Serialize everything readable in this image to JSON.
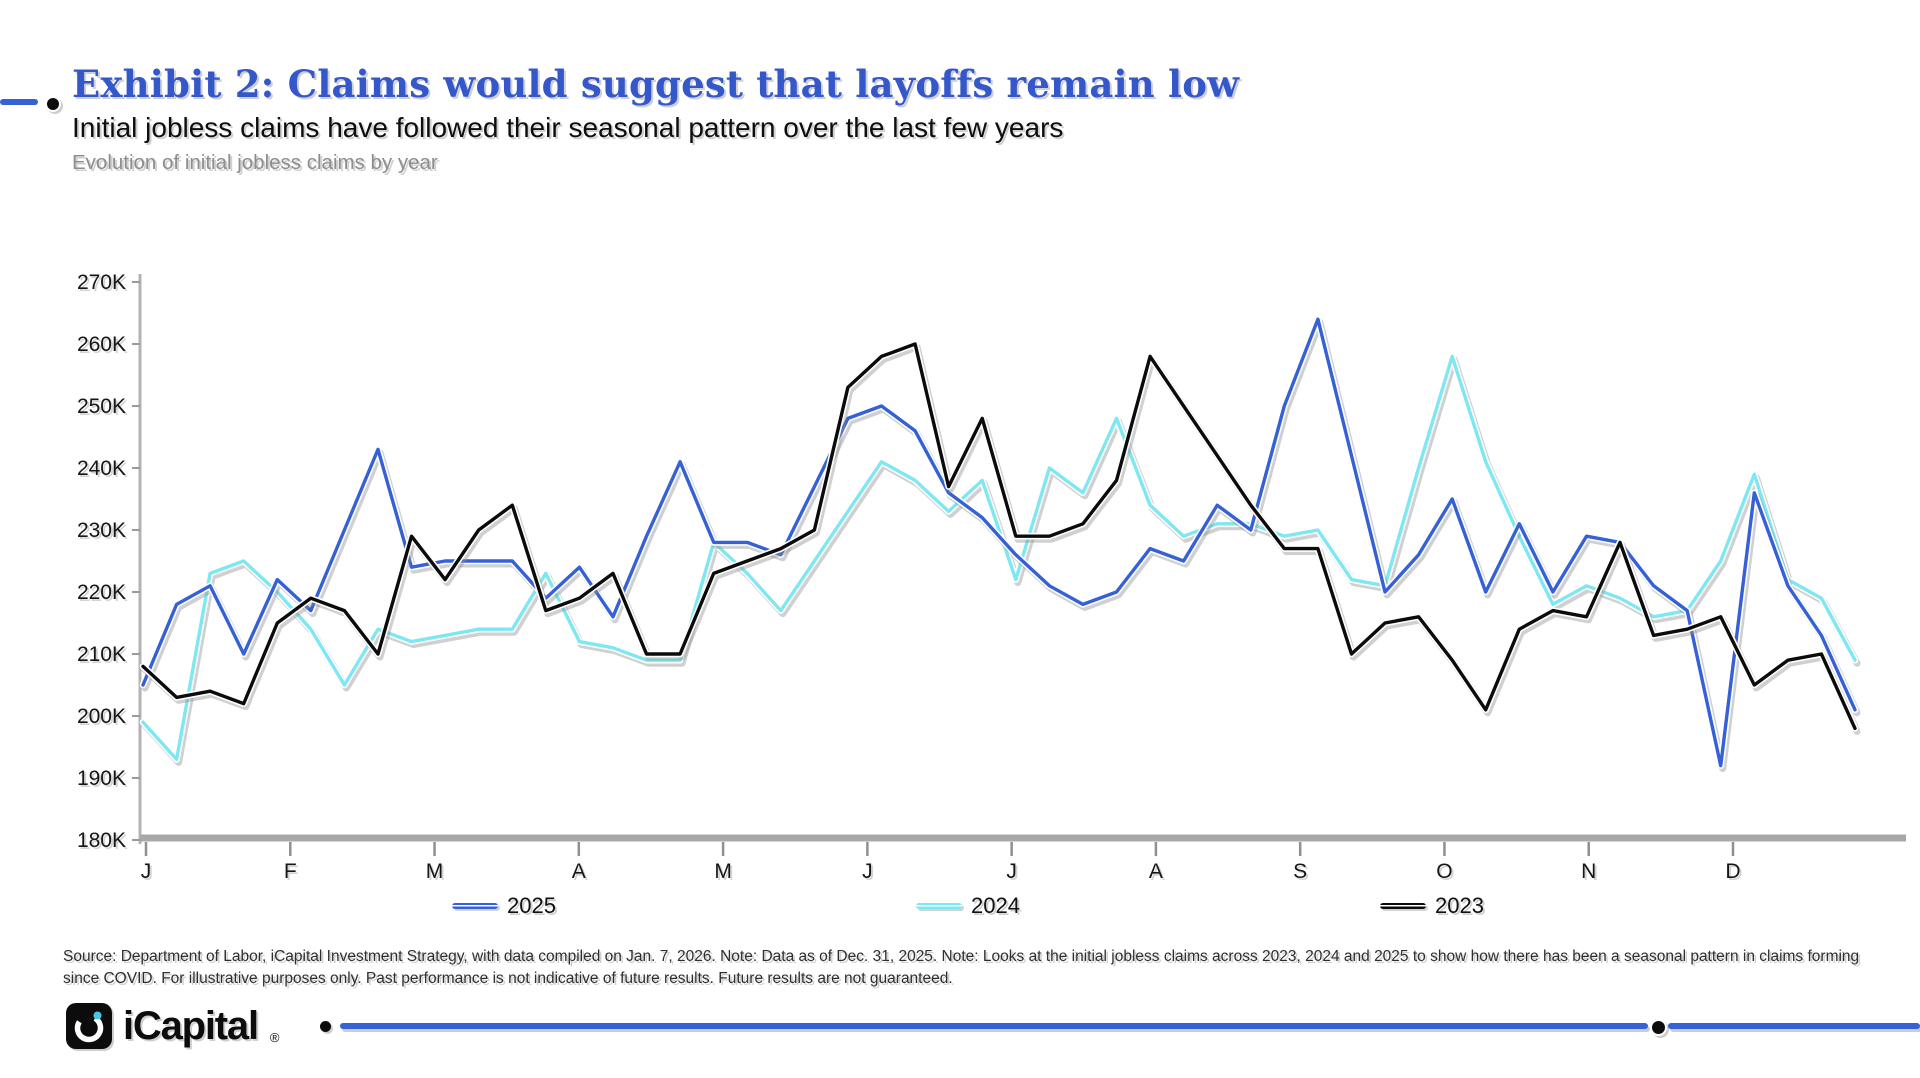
{
  "header": {
    "title": "Exhibit 2: Claims would suggest that layoffs remain low",
    "subtitle": "Initial jobless claims have followed their seasonal pattern over the last few years",
    "description": "Evolution of initial jobless claims by year"
  },
  "colors": {
    "accent_blue": "#3560d6",
    "title_blue": "#3457c9",
    "cyan": "#7de8f1",
    "black": "#0b0b0b",
    "axis_gray": "#a8a8a8"
  },
  "chart_data": {
    "type": "line",
    "title": "Evolution of initial jobless claims by year",
    "unit_note": "values in thousands of claims (K)",
    "weeks": 52,
    "grid": false,
    "legend_position": "bottom",
    "y_axis": {
      "min": 180,
      "max": 270,
      "step": 10,
      "unit": "K"
    },
    "x_axis": {
      "months": [
        "J",
        "F",
        "M",
        "A",
        "M",
        "J",
        "J",
        "A",
        "S",
        "O",
        "N",
        "D"
      ]
    },
    "series": [
      {
        "name": "2025",
        "color": "#3560d6",
        "values": [
          205,
          218,
          221,
          210,
          222,
          217,
          230,
          243,
          224,
          225,
          225,
          225,
          219,
          224,
          216,
          229,
          241,
          228,
          228,
          226,
          237,
          248,
          250,
          246,
          236,
          232,
          226,
          221,
          218,
          220,
          227,
          225,
          234,
          230,
          250,
          264,
          242,
          220,
          226,
          235,
          220,
          231,
          220,
          229,
          228,
          221,
          217,
          192,
          236,
          221,
          213,
          201
        ]
      },
      {
        "name": "2024",
        "color": "#7de8f1",
        "values": [
          199,
          193,
          223,
          225,
          220,
          214,
          205,
          214,
          212,
          213,
          214,
          214,
          223,
          212,
          211,
          209,
          209,
          228,
          223,
          217,
          225,
          233,
          241,
          238,
          233,
          238,
          222,
          240,
          236,
          248,
          234,
          229,
          231,
          231,
          229,
          230,
          222,
          221,
          240,
          258,
          241,
          229,
          218,
          221,
          219,
          216,
          217,
          225,
          239,
          222,
          219,
          209
        ]
      },
      {
        "name": "2023",
        "color": "#0b0b0b",
        "values": [
          208,
          203,
          204,
          202,
          215,
          219,
          217,
          210,
          229,
          222,
          230,
          234,
          217,
          219,
          223,
          210,
          210,
          223,
          225,
          227,
          230,
          253,
          258,
          260,
          237,
          248,
          229,
          229,
          231,
          238,
          258,
          250,
          242,
          234,
          227,
          227,
          210,
          215,
          216,
          209,
          201,
          214,
          217,
          216,
          228,
          213,
          214,
          216,
          205,
          209,
          210,
          198
        ]
      }
    ]
  },
  "footer": {
    "line1": "Source: Department of Labor, iCapital Investment Strategy, with data compiled on Jan. 7, 2026. Note: Data as of Dec. 31, 2025. Note: Looks at the initial jobless claims across 2023, 2024 and 2025 to show how there has been a seasonal pattern in claims forming",
    "line2": "since COVID. For illustrative purposes only. Past performance is not indicative of future results. Future results are not guaranteed."
  },
  "logo": {
    "text": "iCapital",
    "mark": "®"
  }
}
